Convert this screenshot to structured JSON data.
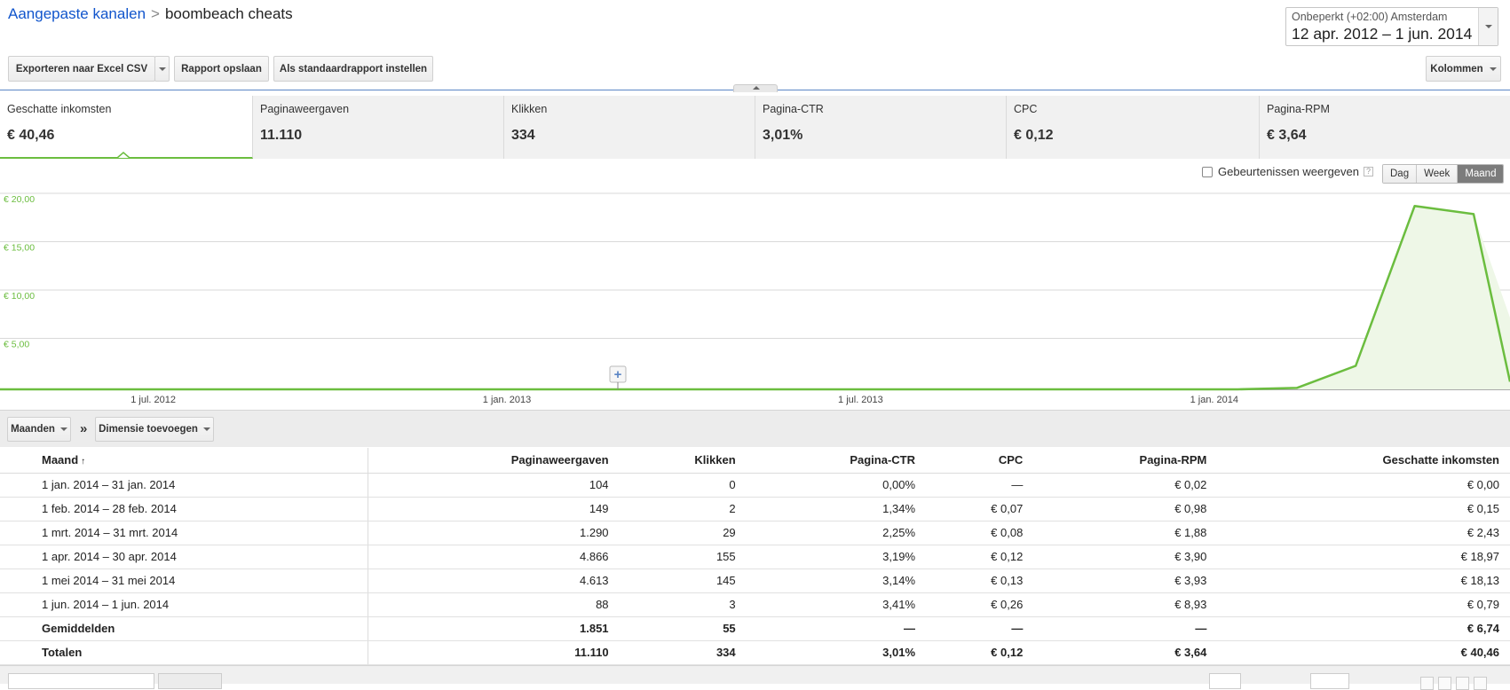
{
  "header": {
    "breadcrumb_link": "Aangepaste kanalen",
    "breadcrumb_separator": ">",
    "breadcrumb_current": "boombeach cheats",
    "timezone": "Onbeperkt (+02:00) Amsterdam",
    "date_range": "12 apr. 2012 – 1 jun. 2014"
  },
  "toolbar": {
    "export_label": "Exporteren naar Excel CSV",
    "save_label": "Rapport opslaan",
    "default_label": "Als standaardrapport instellen",
    "columns_label": "Kolommen"
  },
  "scorecards": [
    {
      "label": "Geschatte inkomsten",
      "value": "€ 40,46",
      "active": true
    },
    {
      "label": "Paginaweergaven",
      "value": "11.110",
      "active": false
    },
    {
      "label": "Klikken",
      "value": "334",
      "active": false
    },
    {
      "label": "Pagina-CTR",
      "value": "3,01%",
      "active": false
    },
    {
      "label": "CPC",
      "value": "€ 0,12",
      "active": false
    },
    {
      "label": "Pagina-RPM",
      "value": "€ 3,64",
      "active": false
    }
  ],
  "chart_controls": {
    "events_label": "Gebeurtenissen weergeven",
    "events_help": "?",
    "granularity": [
      "Dag",
      "Week",
      "Maand"
    ],
    "selected": "Maand"
  },
  "chart_data": {
    "type": "area",
    "series": [
      {
        "x": [
          "2012-04-12",
          "2012-05",
          "2012-06",
          "2012-07",
          "2012-08",
          "2012-09",
          "2012-10",
          "2012-11",
          "2012-12",
          "2013-01",
          "2013-02",
          "2013-03",
          "2013-04",
          "2013-05",
          "2013-06",
          "2013-07",
          "2013-08",
          "2013-09",
          "2013-10",
          "2013-11",
          "2013-12",
          "2014-01",
          "2014-02",
          "2014-03",
          "2014-04",
          "2014-05",
          "2014-06"
        ],
        "values": [
          0,
          0,
          0,
          0,
          0,
          0,
          0,
          0,
          0,
          0,
          0,
          0,
          0,
          0,
          0,
          0,
          0,
          0,
          0,
          0,
          0,
          0,
          0.15,
          2.43,
          18.97,
          18.13,
          0.79
        ]
      }
    ],
    "x_tick_labels": [
      "1 jul. 2012",
      "1 jan. 2013",
      "1 jul. 2013",
      "1 jan. 2014"
    ],
    "y_tick_labels": [
      "€ 20,00",
      "€ 15,00",
      "€ 10,00",
      "€ 5,00"
    ],
    "ylim": [
      0,
      20
    ],
    "grid": true,
    "line_color": "#6bbd3f",
    "fill_color": "#eef7e7"
  },
  "dimension_bar": {
    "months_label": "Maanden",
    "separator": "»",
    "add_dimension_label": "Dimensie toevoegen"
  },
  "table": {
    "headers": [
      "Maand",
      "Paginaweergaven",
      "Klikken",
      "Pagina-CTR",
      "CPC",
      "Pagina-RPM",
      "Geschatte inkomsten"
    ],
    "sort_indicator": "↑",
    "rows": [
      [
        "1 jan. 2014 – 31 jan. 2014",
        "104",
        "0",
        "0,00%",
        "—",
        "€ 0,02",
        "€ 0,00"
      ],
      [
        "1 feb. 2014 – 28 feb. 2014",
        "149",
        "2",
        "1,34%",
        "€ 0,07",
        "€ 0,98",
        "€ 0,15"
      ],
      [
        "1 mrt. 2014 – 31 mrt. 2014",
        "1.290",
        "29",
        "2,25%",
        "€ 0,08",
        "€ 1,88",
        "€ 2,43"
      ],
      [
        "1 apr. 2014 – 30 apr. 2014",
        "4.866",
        "155",
        "3,19%",
        "€ 0,12",
        "€ 3,90",
        "€ 18,97"
      ],
      [
        "1 mei 2014 – 31 mei 2014",
        "4.613",
        "145",
        "3,14%",
        "€ 0,13",
        "€ 3,93",
        "€ 18,13"
      ],
      [
        "1 jun. 2014 – 1 jun. 2014",
        "88",
        "3",
        "3,41%",
        "€ 0,26",
        "€ 8,93",
        "€ 0,79"
      ]
    ],
    "averages": [
      "Gemiddelden",
      "1.851",
      "55",
      "—",
      "—",
      "—",
      "€ 6,74"
    ],
    "totals": [
      "Totalen",
      "11.110",
      "334",
      "3,01%",
      "€ 0,12",
      "€ 3,64",
      "€ 40,46"
    ]
  }
}
